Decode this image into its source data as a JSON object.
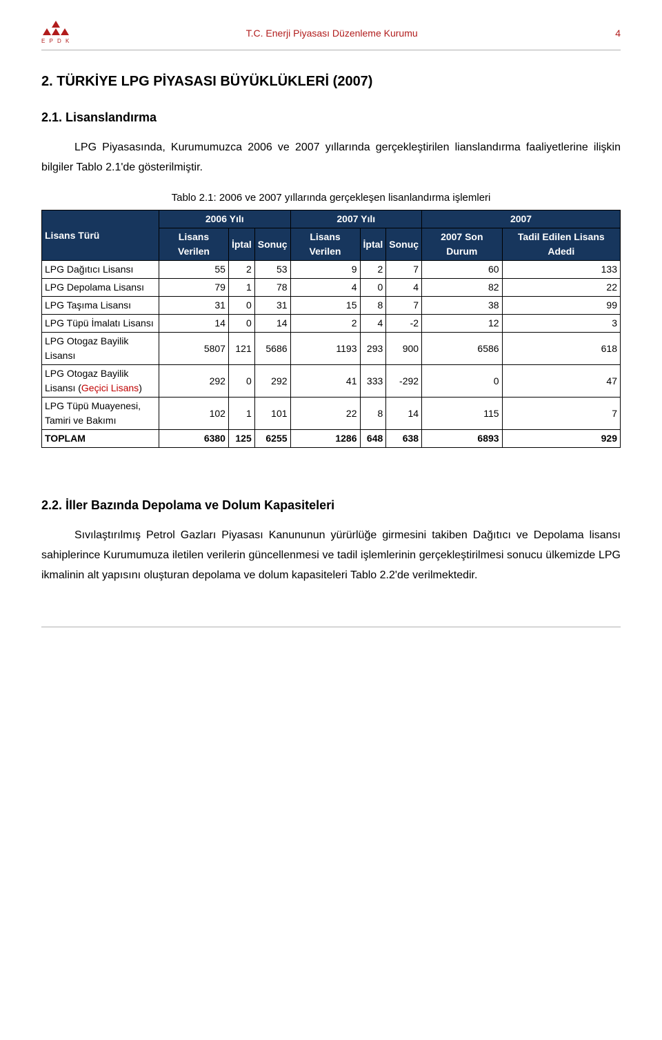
{
  "header": {
    "logo_text": "E P D K",
    "center": "T.C. Enerji Piyasası Düzenleme Kurumu",
    "page_number": "4"
  },
  "section": {
    "main_title": "2. TÜRKİYE LPG PİYASASI BÜYÜKLÜKLERİ (2007)",
    "sub_title_1": "2.1. Lisanslandırma",
    "para_1": "LPG Piyasasında, Kurumumuzca 2006 ve 2007 yıllarında gerçekleştirilen lianslandırma faaliyetlerine ilişkin bilgiler Tablo 2.1'de gösterilmiştir.",
    "table_caption": "Tablo 2.1: 2006 ve 2007 yıllarında gerçekleşen lisanlandırma işlemleri",
    "sub_title_2": "2.2. İller Bazında Depolama ve Dolum Kapasiteleri",
    "para_2": "Sıvılaştırılmış Petrol Gazları Piyasası Kanununun yürürlüğe girmesini takiben Dağıtıcı ve Depolama lisansı sahiplerince Kurumumuza iletilen verilerin güncellenmesi ve tadil işlemlerinin gerçekleştirilmesi sonucu ülkemizde LPG ikmalinin alt yapısını oluşturan depolama ve dolum kapasiteleri Tablo 2.2'de verilmektedir."
  },
  "table": {
    "header": {
      "col0": "Lisans Türü",
      "group_2006": "2006 Yılı",
      "group_2007": "2007 Yılı",
      "group_2007b": "2007",
      "c1": "Lisans Verilen",
      "c2": "İptal",
      "c3": "Sonuç",
      "c4": "Lisans Verilen",
      "c5": "İptal",
      "c6": "Sonuç",
      "c7": "2007 Son Durum",
      "c8": "Tadil Edilen Lisans Adedi"
    },
    "rows": [
      {
        "label": "LPG Dağıtıcı Lisansı",
        "v": [
          "55",
          "2",
          "53",
          "9",
          "2",
          "7",
          "60",
          "133"
        ],
        "red_cols": []
      },
      {
        "label": "LPG Depolama Lisansı",
        "v": [
          "79",
          "1",
          "78",
          "4",
          "0",
          "4",
          "82",
          "22"
        ],
        "red_cols": []
      },
      {
        "label": "LPG Taşıma Lisansı",
        "v": [
          "31",
          "0",
          "31",
          "15",
          "8",
          "7",
          "38",
          "99"
        ],
        "red_cols": []
      },
      {
        "label": "LPG Tüpü İmalatı Lisansı",
        "v": [
          "14",
          "0",
          "14",
          "2",
          "4",
          "-2",
          "12",
          "3"
        ],
        "red_cols": []
      },
      {
        "label": "LPG Otogaz Bayilik Lisansı",
        "v": [
          "5807",
          "121",
          "5686",
          "1193",
          "293",
          "900",
          "6586",
          "618"
        ],
        "red_cols": []
      },
      {
        "label_html": "LPG Otogaz Bayilik Lisansı (<span class=\"red\">Geçici Lisans</span>)",
        "v": [
          "292",
          "0",
          "292",
          "41",
          "333",
          "-292",
          "0",
          "47"
        ],
        "red_cols": [
          4
        ]
      },
      {
        "label": "LPG Tüpü Muayenesi, Tamiri ve Bakımı",
        "v": [
          "102",
          "1",
          "101",
          "22",
          "8",
          "14",
          "115",
          "7"
        ],
        "red_cols": []
      }
    ],
    "total": {
      "label": "TOPLAM",
      "v": [
        "6380",
        "125",
        "6255",
        "1286",
        "648",
        "638",
        "6893",
        "929"
      ],
      "red_cols": [
        1,
        4
      ]
    }
  }
}
